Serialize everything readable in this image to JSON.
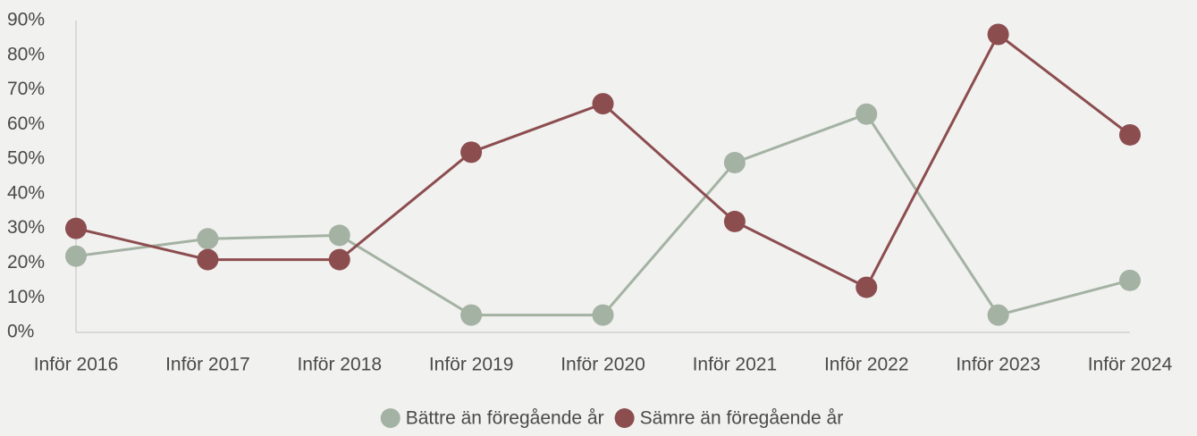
{
  "chart_data": {
    "type": "line",
    "categories": [
      "Inför 2016",
      "Inför 2017",
      "Inför 2018",
      "Inför 2019",
      "Inför 2020",
      "Inför 2021",
      "Inför 2022",
      "Inför 2023",
      "Inför 2024"
    ],
    "series": [
      {
        "name": "Bättre än föregående år",
        "color": "#a4b2a3",
        "values": [
          22,
          27,
          28,
          5,
          5,
          49,
          63,
          5,
          15
        ]
      },
      {
        "name": "Sämre än föregående år",
        "color": "#8c4d4f",
        "values": [
          30,
          21,
          21,
          52,
          66,
          32,
          13,
          86,
          57
        ]
      }
    ],
    "ylim": [
      0,
      90
    ],
    "yticks": [
      {
        "value": 0,
        "label": "0%"
      },
      {
        "value": 10,
        "label": "10%"
      },
      {
        "value": 20,
        "label": "20%"
      },
      {
        "value": 30,
        "label": "30%"
      },
      {
        "value": 40,
        "label": "40%"
      },
      {
        "value": 50,
        "label": "50%"
      },
      {
        "value": 60,
        "label": "60%"
      },
      {
        "value": 70,
        "label": "70%"
      },
      {
        "value": 80,
        "label": "80%"
      },
      {
        "value": 90,
        "label": "90%"
      }
    ],
    "legend": "bottom",
    "grid": false
  }
}
